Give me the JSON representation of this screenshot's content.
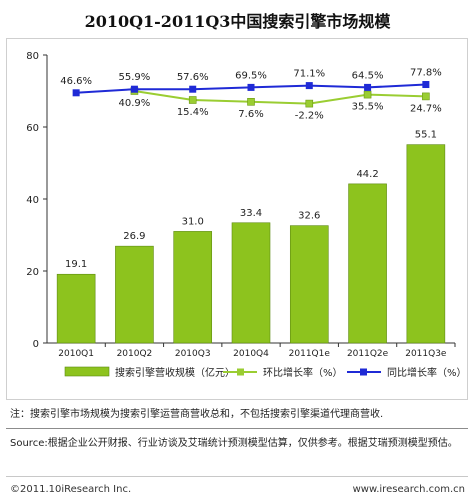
{
  "chart_data": {
    "type": "bar",
    "title": "2010Q1-2011Q3中国搜索引擎市场规模",
    "categories": [
      "2010Q1",
      "2010Q2",
      "2010Q3",
      "2010Q4",
      "2011Q1e",
      "2011Q2e",
      "2011Q3e"
    ],
    "ylim": [
      0,
      80
    ],
    "yticks": [
      0,
      20,
      40,
      60,
      80
    ],
    "grid": false,
    "legend_position": "bottom",
    "series": [
      {
        "name": "搜索引擎营收规模（亿元）",
        "type": "bar",
        "color": "#8dc31e",
        "values": [
          19.1,
          26.9,
          31.0,
          33.4,
          32.6,
          44.2,
          55.1
        ],
        "labels": [
          "19.1",
          "26.9",
          "31.0",
          "33.4",
          "32.6",
          "44.2",
          "55.1"
        ]
      },
      {
        "name": "环比增长率（%）",
        "type": "line",
        "color": "#9acd32",
        "values": [
          null,
          70.0,
          67.5,
          67.0,
          66.5,
          69.0,
          68.5
        ],
        "labels": [
          "",
          "40.9%",
          "15.4%",
          "7.6%",
          "-2.2%",
          "35.5%",
          "24.7%"
        ]
      },
      {
        "name": "同比增长率（%）",
        "type": "line",
        "color": "#1f2ad6",
        "values": [
          69.5,
          70.5,
          70.5,
          71.0,
          71.5,
          71.0,
          71.8
        ],
        "labels": [
          "46.6%",
          "55.9%",
          "57.6%",
          "69.5%",
          "71.1%",
          "64.5%",
          "77.8%"
        ]
      }
    ]
  },
  "note": "注：搜索引擎市场规模为搜索引擎运营商营收总和，不包括搜索引擎渠道代理商营收.",
  "source": "Source:根据企业公开财报、行业访谈及艾瑞统计预测模型估算，仅供参考。根据艾瑞预测模型预估。",
  "copyright": "©2011.10iResearch Inc.",
  "website": "www.iresearch.com.cn"
}
